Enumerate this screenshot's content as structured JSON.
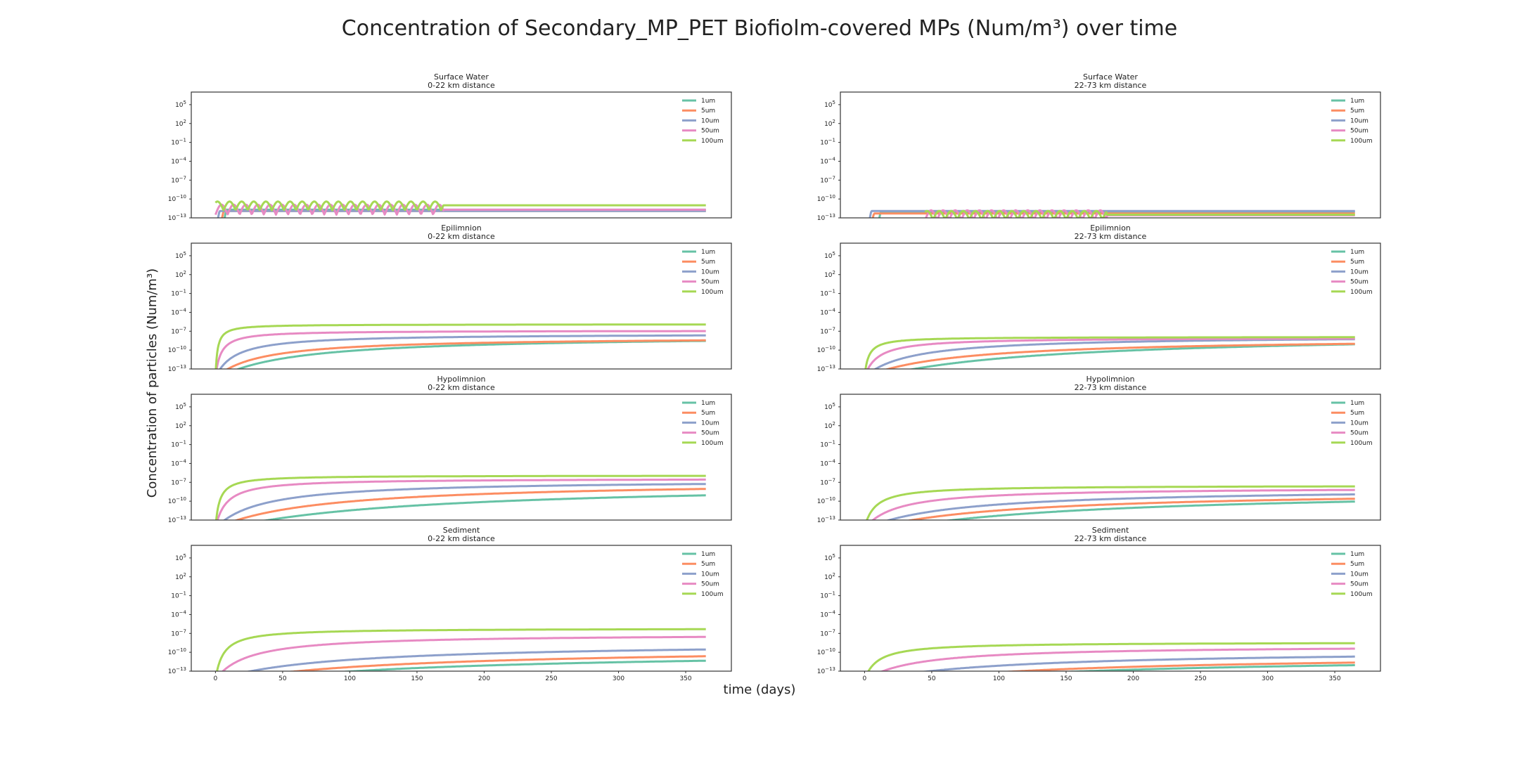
{
  "figure": {
    "title": "Concentration of Secondary_MP_PET Biofiolm-covered MPs (Num/m³) over time",
    "xlabel": "time (days)",
    "ylabel": "Concentration of particles (Num/m³)"
  },
  "chart_data": {
    "type": "line",
    "x_range": [
      -18,
      384
    ],
    "x_ticks": [
      0,
      50,
      100,
      150,
      200,
      250,
      300,
      350
    ],
    "y_scale": "log",
    "y_range_exp": [
      -13,
      7
    ],
    "y_ticks_exp": [
      -13,
      -10,
      -7,
      -4,
      -1,
      2,
      5
    ],
    "grid": false,
    "legend_position": "upper-right",
    "series_names": [
      "1um",
      "5um",
      "10um",
      "50um",
      "100um"
    ],
    "series_colors": [
      "#66c2a5",
      "#fc8d62",
      "#8da0cb",
      "#e78ac3",
      "#a6d854"
    ],
    "panels": [
      {
        "title": "Surface Water",
        "subtitle": "0-22 km distance",
        "type": "surface",
        "x_start": [
          6,
          4,
          1,
          0,
          0
        ],
        "rise": [
          1,
          1,
          1,
          1,
          1
        ],
        "plateau": [
          -11.7,
          -11.9,
          -11.9,
          -11.7,
          -11.0
        ],
        "osc_until": 170
      },
      {
        "title": "Surface Water",
        "subtitle": "22-73 km distance",
        "type": "surface",
        "x_start": [
          10,
          5,
          3,
          45,
          45
        ],
        "rise": [
          1,
          1,
          1,
          1,
          1
        ],
        "plateau": [
          -12.0,
          -12.3,
          -11.9,
          -12.6,
          -12.5
        ],
        "osc_until": 180
      },
      {
        "title": "Epilimnion",
        "subtitle": "0-22 km distance",
        "type": "growth",
        "x_start": [
          4,
          1,
          0.3,
          0.1,
          0.05
        ],
        "rise": [
          60,
          35,
          15,
          4,
          1.5
        ],
        "plateau": [
          -7.6,
          -7.9,
          -7.4,
          -6.9,
          -5.9
        ]
      },
      {
        "title": "Epilimnion",
        "subtitle": "22-73 km distance",
        "type": "growth",
        "x_start": [
          10,
          1,
          0.3,
          0.1,
          0.05
        ],
        "rise": [
          130,
          70,
          35,
          10,
          3
        ],
        "plateau": [
          -7.2,
          -8.0,
          -7.7,
          -8.0,
          -7.9
        ]
      },
      {
        "title": "Hypolimnion",
        "subtitle": "0-22 km distance",
        "type": "growth",
        "x_start": [
          10,
          1,
          0.3,
          0.1,
          0.05
        ],
        "rise": [
          150,
          80,
          35,
          8,
          3
        ],
        "plateau": [
          -6.9,
          -6.7,
          -6.6,
          -6.4,
          -5.9
        ]
      },
      {
        "title": "Hypolimnion",
        "subtitle": "22-73 km distance",
        "type": "growth",
        "x_start": [
          25,
          8,
          2,
          0.5,
          0.05
        ],
        "rise": [
          170,
          110,
          70,
          25,
          8
        ],
        "plateau": [
          -8.0,
          -8.2,
          -7.9,
          -7.8,
          -7.5
        ]
      },
      {
        "title": "Sediment",
        "subtitle": "0-22 km distance",
        "type": "growth",
        "x_start": [
          35,
          15,
          3,
          0.5,
          0.1
        ],
        "rise": [
          190,
          150,
          90,
          25,
          6
        ],
        "plateau": [
          -9.7,
          -9.1,
          -8.4,
          -7.1,
          -6.2
        ]
      },
      {
        "title": "Sediment",
        "subtitle": "22-73 km distance",
        "type": "growth",
        "x_start": [
          60,
          40,
          10,
          2,
          0.3
        ],
        "rise": [
          220,
          170,
          110,
          40,
          10
        ],
        "plateau": [
          -10.5,
          -10.3,
          -9.6,
          -8.9,
          -8.4
        ]
      }
    ]
  }
}
